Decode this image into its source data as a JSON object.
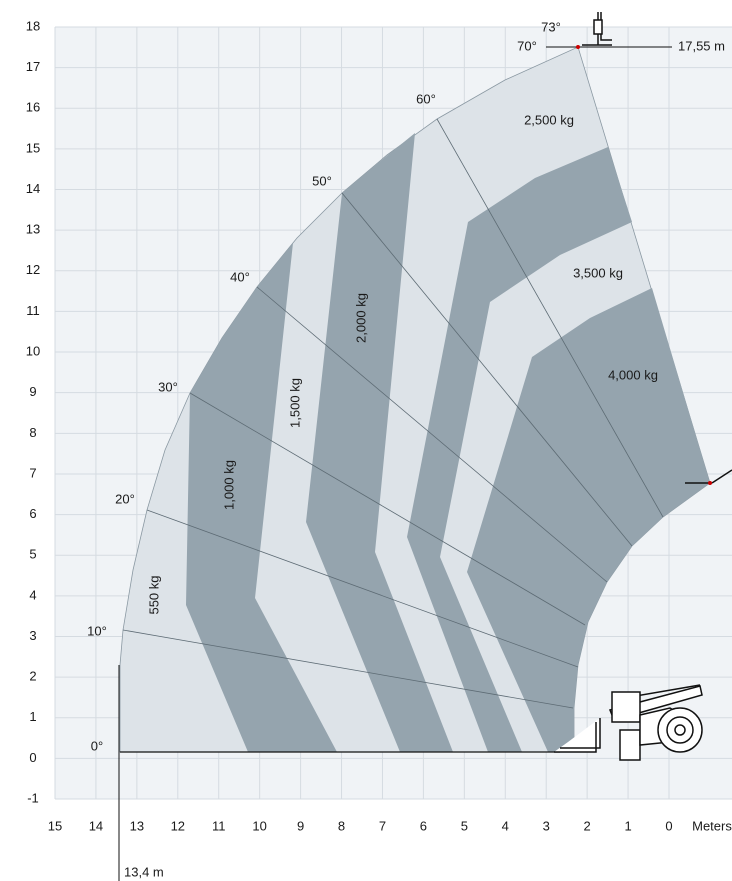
{
  "chart_data": {
    "type": "load-chart",
    "xlim": [
      15,
      0
    ],
    "ylim": [
      -1,
      18
    ],
    "xticks": [
      15,
      14,
      13,
      12,
      11,
      10,
      9,
      8,
      7,
      6,
      5,
      4,
      3,
      2,
      1,
      0
    ],
    "yticks": [
      -1,
      0,
      1,
      2,
      3,
      4,
      5,
      6,
      7,
      8,
      9,
      10,
      11,
      12,
      13,
      14,
      15,
      16,
      17,
      18
    ],
    "x_label": "Meters",
    "grid": true,
    "angle_labels": [
      "0°",
      "10°",
      "20°",
      "30°",
      "40°",
      "50°",
      "60°",
      "70°",
      "73°"
    ],
    "load_labels": [
      "550 kg",
      "1,000 kg",
      "1,500 kg",
      "2,000 kg",
      "2,500 kg",
      "3,500 kg",
      "4,000 kg"
    ],
    "max_height": "17,55 m",
    "max_reach": "13,4 m"
  }
}
